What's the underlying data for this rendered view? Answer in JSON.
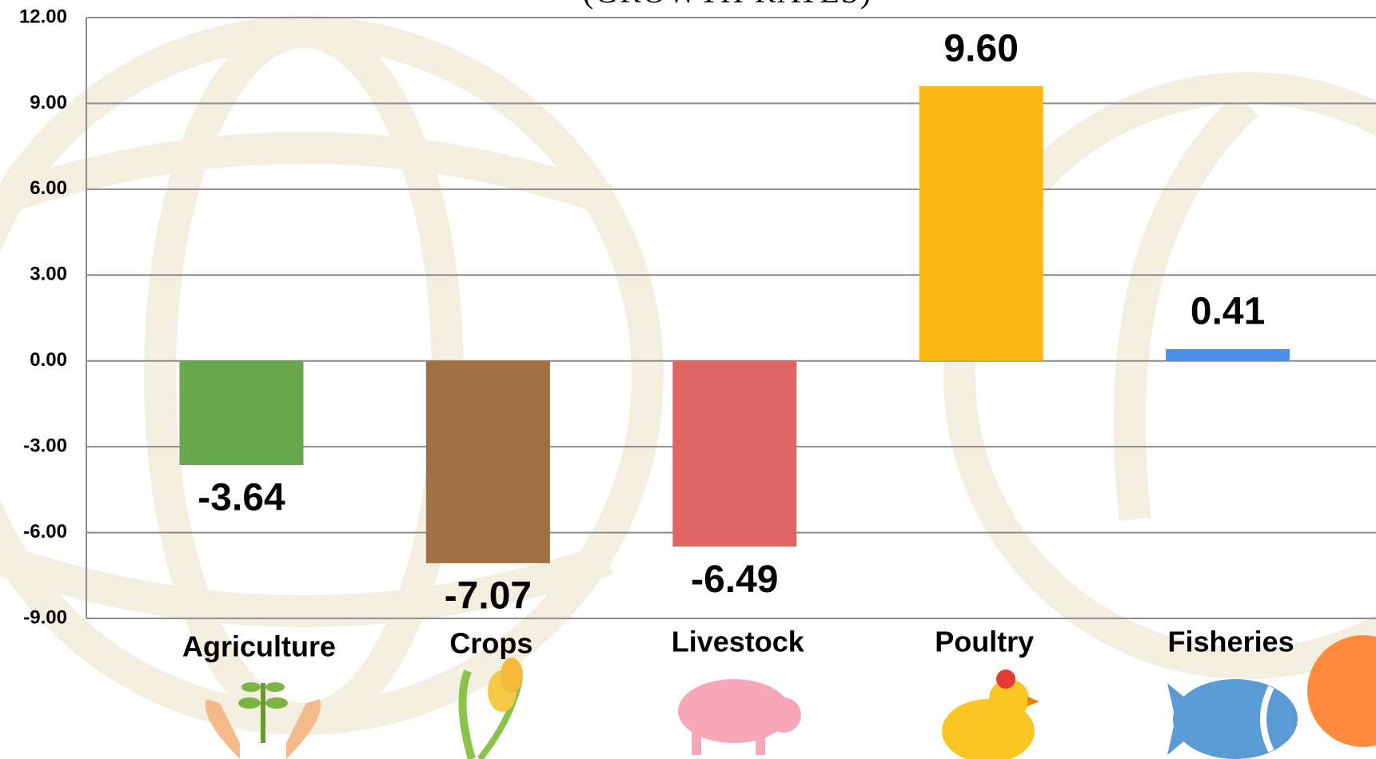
{
  "chart_data": {
    "type": "bar",
    "subtitle": "(GROWTH RATES)",
    "categories": [
      "Agriculture",
      "Crops",
      "Livestock",
      "Poultry",
      "Fisheries"
    ],
    "values": [
      -3.64,
      -7.07,
      -6.49,
      9.6,
      0.41
    ],
    "value_labels": [
      "-3.64",
      "-7.07",
      "-6.49",
      "9.60",
      "0.41"
    ],
    "colors": [
      "#66a84b",
      "#a07044",
      "#e06666",
      "#fbb714",
      "#4a8fe8"
    ],
    "ylim": [
      -9,
      12
    ],
    "yticks": [
      {
        "value": -9,
        "label": "-9.00"
      },
      {
        "value": -6,
        "label": "-6.00"
      },
      {
        "value": -3,
        "label": "-3.00"
      },
      {
        "value": 0,
        "label": "0.00"
      },
      {
        "value": 3,
        "label": "3.00"
      },
      {
        "value": 6,
        "label": "6.00"
      },
      {
        "value": 9,
        "label": "9.00"
      },
      {
        "value": 12,
        "label": "12.00"
      }
    ],
    "grid": true
  }
}
